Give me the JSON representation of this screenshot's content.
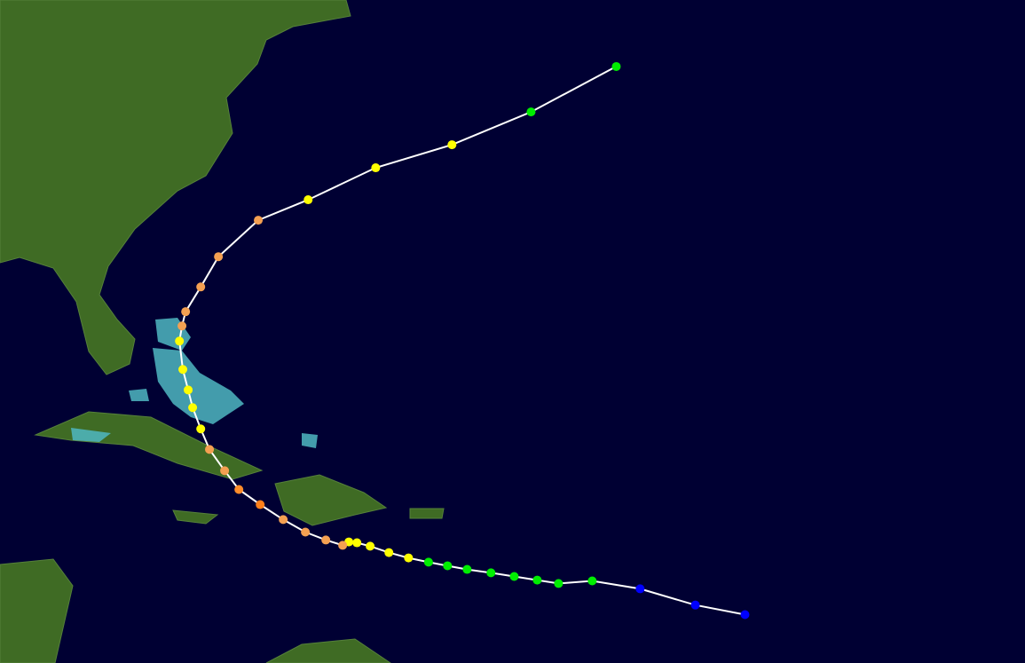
{
  "map": {
    "background": "#000033",
    "lon_range": [
      -86.7,
      -38.6
    ],
    "lat_range": [
      11.0,
      42.1
    ],
    "track": {
      "line_color": "#ffffff",
      "lon": [
        -51.74,
        -54.07,
        -56.66,
        -58.91,
        -60.49,
        -61.49,
        -62.57,
        -63.66,
        -64.78,
        -65.7,
        -66.59,
        -67.53,
        -68.45,
        -69.33,
        -69.95,
        -70.33,
        -70.62,
        -71.41,
        -72.37,
        -73.41,
        -74.49,
        -75.49,
        -76.16,
        -76.87,
        -77.28,
        -77.66,
        -77.87,
        -78.12,
        -78.28,
        -78.16,
        -77.99,
        -77.28,
        -76.45,
        -74.58,
        -72.24,
        -69.07,
        -65.49,
        -61.78,
        -57.78
      ],
      "lat": [
        13.27,
        13.72,
        14.48,
        14.85,
        14.73,
        14.89,
        15.06,
        15.23,
        15.39,
        15.56,
        15.73,
        15.93,
        16.18,
        16.48,
        16.64,
        16.68,
        16.52,
        16.77,
        17.14,
        17.73,
        18.43,
        19.14,
        20.02,
        21.02,
        21.98,
        22.98,
        23.81,
        24.77,
        26.1,
        26.81,
        27.48,
        28.64,
        30.06,
        31.77,
        32.73,
        34.23,
        35.31,
        36.85,
        38.98
      ],
      "colors": [
        "#0000ff",
        "#0000ff",
        "#0000ff",
        "#00ee00",
        "#00ee00",
        "#00ee00",
        "#00ee00",
        "#00ee00",
        "#00ee00",
        "#00ee00",
        "#00ee00",
        "#ffff00",
        "#ffff00",
        "#ffff00",
        "#ffff00",
        "#ffff00",
        "#f4a052",
        "#f4a052",
        "#f4a052",
        "#f4a052",
        "#ff7f1a",
        "#ff8c2a",
        "#f4a052",
        "#f4a052",
        "#ffff00",
        "#ffff00",
        "#ffff00",
        "#ffff00",
        "#ffff00",
        "#f4a052",
        "#f4a052",
        "#f4a052",
        "#f4a052",
        "#f4a052",
        "#ffff00",
        "#ffff00",
        "#ffff00",
        "#00ee00",
        "#00ee00"
      ]
    }
  }
}
